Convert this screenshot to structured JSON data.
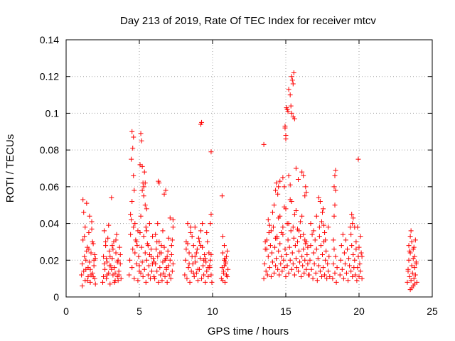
{
  "chart_data": {
    "type": "scatter",
    "title": "Day 213 of 2019, Rate Of TEC Index for receiver mtcv",
    "xlabel": "GPS time / hours",
    "ylabel": "ROTI / TECUs",
    "xlim": [
      0,
      25
    ],
    "ylim": [
      0,
      0.14
    ],
    "x_ticks": [
      "0",
      "5",
      "10",
      "15",
      "20",
      "25"
    ],
    "y_ticks": [
      "0",
      "0.02",
      "0.04",
      "0.06",
      "0.08",
      "0.1",
      "0.12",
      "0.14"
    ],
    "grid": true,
    "marker": "+",
    "color": "#ff0000",
    "series": [
      {
        "x": [
          1.05,
          1.1,
          1.15,
          1.2,
          1.25,
          1.3,
          1.35,
          1.4,
          1.45,
          1.5,
          1.55,
          1.6,
          1.65,
          1.7,
          1.75,
          1.8,
          1.85,
          1.9,
          1.95,
          2.0,
          1.1,
          1.2,
          1.3,
          1.4,
          1.5,
          1.6,
          1.7,
          1.8,
          1.9,
          2.0,
          1.15,
          1.25,
          1.35,
          1.45,
          1.55,
          1.65,
          1.75,
          1.85,
          1.95,
          2.5,
          2.55,
          2.6,
          2.65,
          2.7,
          2.75,
          2.8,
          2.85,
          2.9,
          2.95,
          3.0,
          3.05,
          3.1,
          3.15,
          3.2,
          3.25,
          3.3,
          3.35,
          3.4,
          3.45,
          3.5,
          3.55,
          3.6,
          3.65,
          3.7,
          3.75,
          2.6,
          2.7,
          2.8,
          2.9,
          3.0,
          3.1,
          3.2,
          3.3,
          3.4,
          3.5,
          3.6,
          3.7,
          2.55,
          2.75,
          2.95,
          3.15,
          3.35,
          3.55,
          4.3,
          4.35,
          4.4,
          4.45,
          4.5,
          4.55,
          4.6,
          4.65,
          4.7,
          4.75,
          4.8,
          4.85,
          4.9,
          4.95,
          5.0,
          5.05,
          5.1,
          5.15,
          5.2,
          5.25,
          5.3,
          5.35,
          5.4,
          5.45,
          5.5,
          5.55,
          5.6,
          5.65,
          5.7,
          5.75,
          5.8,
          5.85,
          5.9,
          5.95,
          6.0,
          4.4,
          4.5,
          4.6,
          4.7,
          4.8,
          4.9,
          5.0,
          5.1,
          5.2,
          5.3,
          5.4,
          5.5,
          5.6,
          5.7,
          5.8,
          5.9,
          6.0,
          4.45,
          4.5,
          4.55,
          5.1,
          5.15,
          5.2,
          5.25,
          5.3,
          5.35,
          4.6,
          4.65,
          5.05,
          5.4,
          5.5,
          5.45,
          6.05,
          6.1,
          6.15,
          6.2,
          6.25,
          6.3,
          6.35,
          6.4,
          6.45,
          6.5,
          6.55,
          6.6,
          6.65,
          6.7,
          6.75,
          6.8,
          6.85,
          6.9,
          6.95,
          7.0,
          7.05,
          7.1,
          7.15,
          7.2,
          7.25,
          7.3,
          6.1,
          6.3,
          6.5,
          6.7,
          6.9,
          7.1,
          7.3,
          6.2,
          6.4,
          6.6,
          6.8,
          7.0,
          7.2,
          6.25,
          6.35,
          6.75,
          6.85,
          7.25,
          7.3,
          8.1,
          8.15,
          8.2,
          8.25,
          8.3,
          8.35,
          8.4,
          8.45,
          8.5,
          8.55,
          8.6,
          8.65,
          8.7,
          8.75,
          8.8,
          8.85,
          8.9,
          8.95,
          9.0,
          9.05,
          9.1,
          9.15,
          9.2,
          9.25,
          9.3,
          9.35,
          9.4,
          9.45,
          9.5,
          9.55,
          9.6,
          9.65,
          9.7,
          9.75,
          9.8,
          9.85,
          9.9,
          9.95,
          8.2,
          8.4,
          8.6,
          8.8,
          9.0,
          9.2,
          9.4,
          9.6,
          9.8,
          8.3,
          8.5,
          8.7,
          8.9,
          9.1,
          9.3,
          9.5,
          9.7,
          9.9,
          9.2,
          9.25,
          9.85,
          9.9,
          9.9,
          10.6,
          10.65,
          10.7,
          10.75,
          10.8,
          10.85,
          10.9,
          10.95,
          11.0,
          11.05,
          10.7,
          10.8,
          10.9,
          11.0,
          10.65,
          10.75,
          10.85,
          10.95,
          10.7,
          10.8,
          13.5,
          13.55,
          13.6,
          13.65,
          13.7,
          13.75,
          13.8,
          13.85,
          13.9,
          13.95,
          14.0,
          14.05,
          14.1,
          14.15,
          14.2,
          14.25,
          14.3,
          14.35,
          14.4,
          14.45,
          14.5,
          14.55,
          14.6,
          14.65,
          14.7,
          14.75,
          14.8,
          14.85,
          14.9,
          14.95,
          15.0,
          15.05,
          15.1,
          15.15,
          15.2,
          15.25,
          15.3,
          15.35,
          15.4,
          15.45,
          15.5,
          15.55,
          15.6,
          15.65,
          15.7,
          15.75,
          15.8,
          15.85,
          15.9,
          15.95,
          16.0,
          16.05,
          16.1,
          16.15,
          16.2,
          16.25,
          16.3,
          16.35,
          16.4,
          16.45,
          16.5,
          16.55,
          13.6,
          13.8,
          14.0,
          14.2,
          14.4,
          14.6,
          14.8,
          15.0,
          15.2,
          15.4,
          15.6,
          15.8,
          16.0,
          16.2,
          16.4,
          13.7,
          13.9,
          14.1,
          14.3,
          14.5,
          14.7,
          14.9,
          15.1,
          15.3,
          15.5,
          15.7,
          15.9,
          16.1,
          16.3,
          16.5,
          13.5,
          14.3,
          14.35,
          14.45,
          14.5,
          14.6,
          14.8,
          14.9,
          14.95,
          14.95,
          15.0,
          15.0,
          15.05,
          15.1,
          15.15,
          15.2,
          15.3,
          15.35,
          15.4,
          15.45,
          15.5,
          15.55,
          15.4,
          15.5,
          15.2,
          15.3,
          15.6,
          15.7,
          15.85,
          16.1,
          16.2,
          16.3,
          16.35,
          16.4,
          16.6,
          16.65,
          16.7,
          16.75,
          16.8,
          16.85,
          16.9,
          16.95,
          17.0,
          17.05,
          17.1,
          17.15,
          17.2,
          17.25,
          17.3,
          17.35,
          17.4,
          17.45,
          17.5,
          17.55,
          17.6,
          17.65,
          17.7,
          17.75,
          17.8,
          17.85,
          17.9,
          17.95,
          18.0,
          16.7,
          16.9,
          17.1,
          17.3,
          17.5,
          17.7,
          17.9,
          17.25,
          17.35,
          17.45,
          17.55,
          17.6,
          17.65,
          18.2,
          18.25,
          18.3,
          18.35,
          18.4,
          18.45,
          18.5,
          18.3,
          18.35,
          18.4,
          18.25,
          18.3,
          18.35,
          18.4,
          18.7,
          18.75,
          18.8,
          18.85,
          18.9,
          18.95,
          19.0,
          19.05,
          19.1,
          19.15,
          19.2,
          19.25,
          19.3,
          19.35,
          19.4,
          19.45,
          19.5,
          19.55,
          19.6,
          19.65,
          19.7,
          19.75,
          19.8,
          19.85,
          19.9,
          19.95,
          20.0,
          20.05,
          20.1,
          20.15,
          20.2,
          19.8,
          19.9,
          20.0,
          20.1,
          20.2,
          19.5,
          19.6,
          19.7,
          19.45,
          19.55,
          19.95,
          23.3,
          23.35,
          23.4,
          23.45,
          23.5,
          23.55,
          23.6,
          23.65,
          23.7,
          23.75,
          23.8,
          23.85,
          23.9,
          23.95,
          23.4,
          23.5,
          23.6,
          23.7,
          23.8,
          23.9,
          23.35,
          23.45,
          23.55,
          23.75,
          23.85,
          23.6,
          23.7,
          23.8,
          23.5
        ],
        "y": [
          0.012,
          0.018,
          0.031,
          0.046,
          0.022,
          0.009,
          0.015,
          0.051,
          0.027,
          0.011,
          0.035,
          0.019,
          0.008,
          0.024,
          0.041,
          0.013,
          0.029,
          0.017,
          0.01,
          0.021,
          0.006,
          0.014,
          0.038,
          0.025,
          0.016,
          0.044,
          0.012,
          0.03,
          0.02,
          0.007,
          0.053,
          0.033,
          0.02,
          0.009,
          0.026,
          0.015,
          0.037,
          0.011,
          0.023,
          0.008,
          0.022,
          0.036,
          0.015,
          0.028,
          0.01,
          0.019,
          0.032,
          0.013,
          0.025,
          0.007,
          0.017,
          0.054,
          0.021,
          0.012,
          0.03,
          0.016,
          0.009,
          0.024,
          0.034,
          0.011,
          0.02,
          0.014,
          0.027,
          0.018,
          0.01,
          0.018,
          0.03,
          0.012,
          0.039,
          0.022,
          0.015,
          0.026,
          0.008,
          0.031,
          0.019,
          0.012,
          0.023,
          0.011,
          0.021,
          0.017,
          0.028,
          0.013,
          0.009,
          0.012,
          0.02,
          0.034,
          0.042,
          0.016,
          0.026,
          0.038,
          0.01,
          0.024,
          0.031,
          0.018,
          0.028,
          0.009,
          0.022,
          0.017,
          0.035,
          0.013,
          0.027,
          0.019,
          0.011,
          0.033,
          0.015,
          0.024,
          0.008,
          0.02,
          0.029,
          0.012,
          0.017,
          0.023,
          0.01,
          0.026,
          0.014,
          0.018,
          0.021,
          0.011,
          0.045,
          0.052,
          0.066,
          0.04,
          0.03,
          0.036,
          0.014,
          0.044,
          0.058,
          0.06,
          0.05,
          0.036,
          0.028,
          0.04,
          0.022,
          0.033,
          0.019,
          0.075,
          0.09,
          0.081,
          0.089,
          0.085,
          0.071,
          0.062,
          0.055,
          0.068,
          0.087,
          0.058,
          0.072,
          0.062,
          0.048,
          0.038,
          0.01,
          0.018,
          0.026,
          0.014,
          0.022,
          0.008,
          0.03,
          0.016,
          0.012,
          0.024,
          0.009,
          0.019,
          0.013,
          0.027,
          0.011,
          0.021,
          0.015,
          0.008,
          0.025,
          0.017,
          0.012,
          0.02,
          0.01,
          0.023,
          0.014,
          0.038,
          0.034,
          0.063,
          0.028,
          0.056,
          0.022,
          0.043,
          0.018,
          0.03,
          0.024,
          0.036,
          0.058,
          0.032,
          0.028,
          0.04,
          0.062,
          0.02,
          0.016,
          0.031,
          0.042,
          0.012,
          0.02,
          0.03,
          0.01,
          0.04,
          0.016,
          0.024,
          0.008,
          0.035,
          0.014,
          0.022,
          0.018,
          0.028,
          0.011,
          0.038,
          0.019,
          0.013,
          0.026,
          0.009,
          0.032,
          0.015,
          0.021,
          0.036,
          0.01,
          0.027,
          0.017,
          0.012,
          0.023,
          0.008,
          0.019,
          0.014,
          0.03,
          0.011,
          0.024,
          0.016,
          0.02,
          0.012,
          0.008,
          0.026,
          0.018,
          0.033,
          0.022,
          0.015,
          0.028,
          0.02,
          0.035,
          0.017,
          0.029,
          0.038,
          0.013,
          0.024,
          0.03,
          0.04,
          0.021,
          0.016,
          0.023,
          0.094,
          0.095,
          0.04,
          0.045,
          0.079,
          0.01,
          0.016,
          0.024,
          0.013,
          0.02,
          0.008,
          0.018,
          0.022,
          0.011,
          0.015,
          0.033,
          0.028,
          0.019,
          0.025,
          0.055,
          0.014,
          0.021,
          0.012,
          0.009,
          0.017,
          0.01,
          0.018,
          0.026,
          0.014,
          0.031,
          0.012,
          0.022,
          0.035,
          0.016,
          0.028,
          0.011,
          0.024,
          0.019,
          0.038,
          0.013,
          0.027,
          0.017,
          0.021,
          0.032,
          0.015,
          0.025,
          0.012,
          0.029,
          0.018,
          0.022,
          0.014,
          0.034,
          0.02,
          0.016,
          0.026,
          0.011,
          0.023,
          0.017,
          0.031,
          0.013,
          0.027,
          0.02,
          0.036,
          0.015,
          0.024,
          0.018,
          0.032,
          0.012,
          0.028,
          0.021,
          0.016,
          0.03,
          0.014,
          0.025,
          0.019,
          0.033,
          0.011,
          0.022,
          0.017,
          0.026,
          0.013,
          0.02,
          0.029,
          0.015,
          0.023,
          0.018,
          0.012,
          0.03,
          0.042,
          0.036,
          0.05,
          0.033,
          0.044,
          0.038,
          0.048,
          0.04,
          0.052,
          0.045,
          0.037,
          0.041,
          0.034,
          0.03,
          0.026,
          0.039,
          0.046,
          0.032,
          0.043,
          0.035,
          0.049,
          0.04,
          0.053,
          0.038,
          0.047,
          0.036,
          0.044,
          0.031,
          0.027,
          0.083,
          0.058,
          0.062,
          0.056,
          0.06,
          0.063,
          0.065,
          0.06,
          0.092,
          0.093,
          0.086,
          0.088,
          0.103,
          0.102,
          0.101,
          0.113,
          0.11,
          0.104,
          0.12,
          0.118,
          0.116,
          0.122,
          0.1,
          0.098,
          0.066,
          0.061,
          0.097,
          0.07,
          0.064,
          0.068,
          0.066,
          0.055,
          0.06,
          0.057,
          0.012,
          0.02,
          0.028,
          0.015,
          0.034,
          0.01,
          0.024,
          0.018,
          0.031,
          0.013,
          0.026,
          0.009,
          0.021,
          0.017,
          0.038,
          0.014,
          0.028,
          0.011,
          0.023,
          0.016,
          0.03,
          0.012,
          0.02,
          0.025,
          0.01,
          0.018,
          0.014,
          0.022,
          0.011,
          0.04,
          0.036,
          0.044,
          0.033,
          0.046,
          0.031,
          0.038,
          0.054,
          0.052,
          0.041,
          0.048,
          0.039,
          0.035,
          0.01,
          0.018,
          0.026,
          0.013,
          0.022,
          0.008,
          0.016,
          0.06,
          0.066,
          0.069,
          0.031,
          0.044,
          0.05,
          0.058,
          0.012,
          0.02,
          0.028,
          0.015,
          0.034,
          0.01,
          0.024,
          0.018,
          0.031,
          0.013,
          0.026,
          0.009,
          0.021,
          0.017,
          0.038,
          0.014,
          0.028,
          0.011,
          0.023,
          0.016,
          0.02,
          0.012,
          0.026,
          0.009,
          0.016,
          0.022,
          0.011,
          0.018,
          0.014,
          0.024,
          0.01,
          0.03,
          0.038,
          0.027,
          0.033,
          0.022,
          0.045,
          0.043,
          0.038,
          0.034,
          0.04,
          0.075,
          0.008,
          0.014,
          0.02,
          0.011,
          0.024,
          0.009,
          0.017,
          0.013,
          0.021,
          0.01,
          0.016,
          0.012,
          0.019,
          0.008,
          0.028,
          0.033,
          0.03,
          0.026,
          0.022,
          0.018,
          0.015,
          0.025,
          0.036,
          0.027,
          0.031,
          0.005,
          0.006,
          0.007,
          0.004
        ]
      }
    ]
  }
}
